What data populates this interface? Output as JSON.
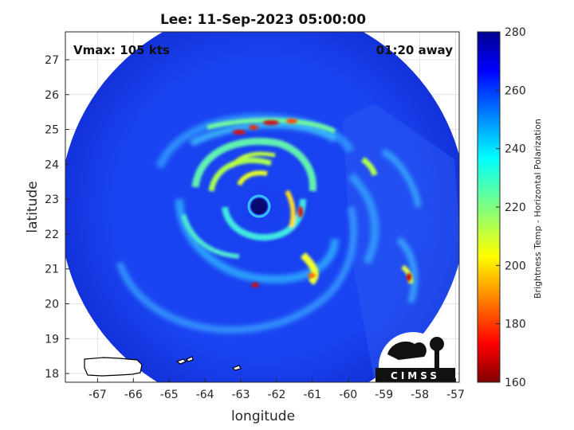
{
  "title": "Lee: 11-Sep-2023 05:00:00",
  "annotations": {
    "vmax": "Vmax: 105 kts",
    "time_away": "01:20 away"
  },
  "axes": {
    "xlabel": "longitude",
    "ylabel": "latitude",
    "xlim": [
      -67.9,
      -56.9
    ],
    "ylim": [
      17.75,
      27.8
    ],
    "xticks": [
      "-67",
      "-66",
      "-65",
      "-64",
      "-63",
      "-62",
      "-61",
      "-60",
      "-59",
      "-58",
      "-57"
    ],
    "yticks": [
      "18",
      "19",
      "20",
      "21",
      "22",
      "23",
      "24",
      "25",
      "26",
      "27"
    ]
  },
  "colorbar": {
    "label": "Brightness Temp - Horizontal Polarization",
    "min": 160,
    "max": 280,
    "ticks": [
      "160",
      "180",
      "200",
      "220",
      "240",
      "260",
      "280"
    ],
    "colormap": "jet"
  },
  "storm": {
    "center_lon": -62.4,
    "center_lat": 22.8,
    "swath_radius_deg": 5.8
  },
  "logo": {
    "text": "CIMSS"
  },
  "colors": {
    "background": "#1a3ff5",
    "eye": "#0a0a6e",
    "rain_high": "#c0000a"
  }
}
